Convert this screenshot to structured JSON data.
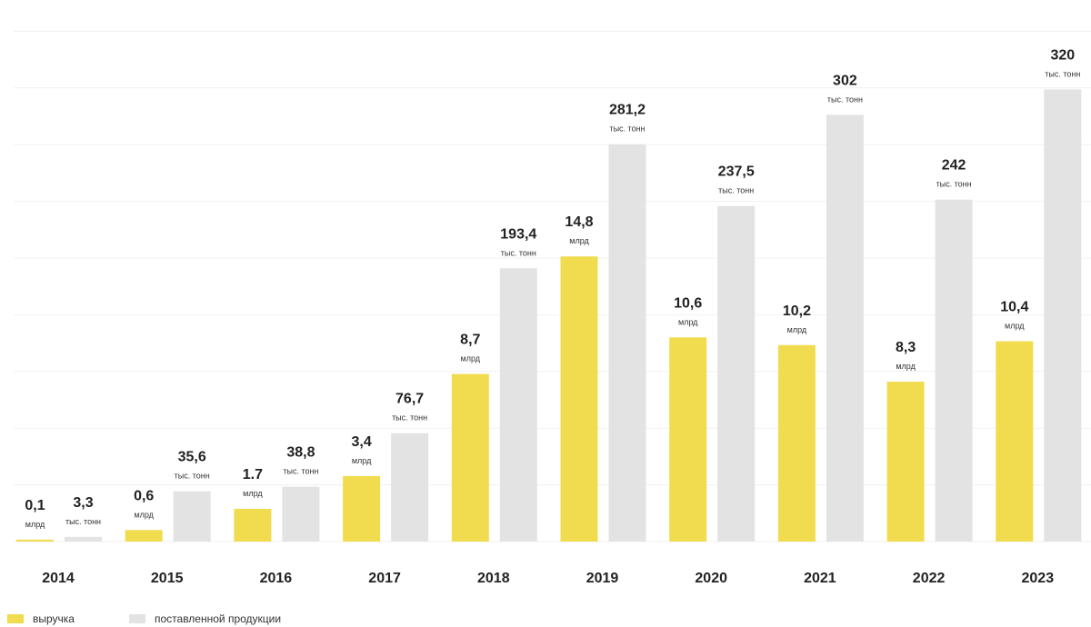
{
  "chart_data": {
    "type": "bar",
    "categories": [
      "2014",
      "2015",
      "2016",
      "2017",
      "2018",
      "2019",
      "2020",
      "2021",
      "2022",
      "2023"
    ],
    "series": [
      {
        "name": "выручка",
        "values": [
          0.1,
          0.6,
          1.7,
          3.4,
          8.7,
          14.8,
          10.6,
          10.2,
          8.3,
          10.4
        ],
        "labels": [
          "0,1",
          "0,6",
          "1.7",
          "3,4",
          "8,7",
          "14,8",
          "10,6",
          "10,2",
          "8,3",
          "10,4"
        ],
        "unit": "млрд",
        "color": "#f0dc4e"
      },
      {
        "name": "поставленной продукции",
        "values": [
          3.3,
          35.6,
          38.8,
          76.7,
          193.4,
          281.2,
          237.5,
          302,
          242,
          320
        ],
        "labels": [
          "3,3",
          "35,6",
          "38,8",
          "76,7",
          "193,4",
          "281,2",
          "237,5",
          "302",
          "242",
          "320"
        ],
        "unit": "тыс. тонн",
        "color": "#e3e3e3"
      }
    ],
    "legend_position": "bottom-left",
    "grid": true
  }
}
